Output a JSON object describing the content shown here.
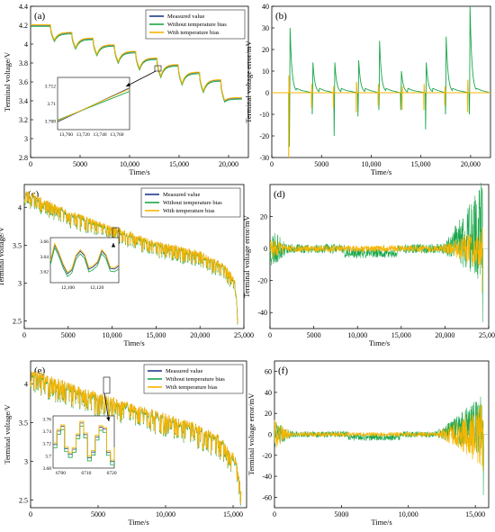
{
  "colors": {
    "measured": "#1f3a8a",
    "without": "#1aa64a",
    "with": "#f7b500"
  },
  "chart_data": [
    {
      "id": "a",
      "type": "line",
      "panel_label": "(a)",
      "xlabel": "Time/s",
      "ylabel": "Terminal voltage/V",
      "xlim": [
        0,
        22000
      ],
      "ylim": [
        2.8,
        4.4
      ],
      "xticks": [
        0,
        5000,
        10000,
        15000,
        20000
      ],
      "xtick_labels": [
        "0",
        "5000",
        "10,000",
        "15,000",
        "20,000"
      ],
      "yticks": [
        2.8,
        3.0,
        3.2,
        3.4,
        3.6,
        3.8,
        4.0,
        4.2,
        4.4
      ],
      "ytick_labels": [
        "2.8",
        "3",
        "3.2",
        "3.4",
        "3.6",
        "3.8",
        "4",
        "4.2",
        "4.4"
      ],
      "legend": [
        "Measured value",
        "Without temperature bias",
        "With temperature bias"
      ],
      "pulse_profile": {
        "start_voltage": 4.2,
        "initial_rest_end": 2000,
        "num_pulses": 9,
        "pulse_period": 2150,
        "pulse_duration": 400,
        "drop_start": [
          4.2,
          4.12,
          4.06,
          3.99,
          3.92,
          3.85,
          3.78,
          3.7,
          3.62
        ],
        "drop_end": [
          4.04,
          3.96,
          3.89,
          3.81,
          3.74,
          3.66,
          3.58,
          3.5,
          3.4
        ]
      },
      "inset": {
        "xlim": [
          13690,
          13775
        ],
        "ylim": [
          3.707,
          3.713
        ],
        "xticks": [
          13700,
          13720,
          13740,
          13760
        ],
        "xtick_labels": [
          "13,700",
          "13,720",
          "13,740",
          "13,760"
        ],
        "yticks": [
          3.708,
          3.71,
          3.712
        ],
        "ytick_labels": [
          "3.708",
          "3.71",
          "3.712"
        ],
        "measured_x": [
          13690,
          13775
        ],
        "measured_y": [
          3.7079,
          3.7118
        ],
        "without_x": [
          13690,
          13775
        ],
        "without_y": [
          3.7081,
          3.7114
        ],
        "with_x": [
          13690,
          13775
        ],
        "with_y": [
          3.708,
          3.7117
        ]
      }
    },
    {
      "id": "b",
      "type": "line",
      "panel_label": "(b)",
      "xlabel": "Time/s",
      "ylabel": "Terminal voltage error/mV",
      "xlim": [
        0,
        22000
      ],
      "ylim": [
        -30,
        40
      ],
      "xticks": [
        0,
        5000,
        10000,
        15000,
        20000
      ],
      "xtick_labels": [
        "0",
        "5000",
        "10,000",
        "15,000",
        "20,000"
      ],
      "yticks": [
        -30,
        -20,
        -10,
        0,
        10,
        20,
        30,
        40
      ],
      "ytick_labels": [
        "-30",
        "-20",
        "-10",
        "0",
        "10",
        "20",
        "30",
        "40"
      ],
      "without_bias_events": [
        {
          "t": 1800,
          "neg": -25,
          "pos": 30
        },
        {
          "t": 4100,
          "neg": -10,
          "pos": 14
        },
        {
          "t": 6300,
          "neg": -20,
          "pos": 14
        },
        {
          "t": 8700,
          "neg": -11,
          "pos": 15
        },
        {
          "t": 10800,
          "neg": -8,
          "pos": 24
        },
        {
          "t": 13000,
          "neg": -8,
          "pos": 10
        },
        {
          "t": 15500,
          "neg": -17,
          "pos": 14
        },
        {
          "t": 17500,
          "neg": -10,
          "pos": 26
        },
        {
          "t": 19900,
          "neg": -10,
          "pos": 40
        }
      ],
      "with_bias_spikes": [
        {
          "t": 1700,
          "neg": -30,
          "pos": 8
        },
        {
          "t": 4000,
          "neg": -7,
          "pos": 4
        },
        {
          "t": 6200,
          "neg": -7,
          "pos": 3
        },
        {
          "t": 8500,
          "neg": -9,
          "pos": 5
        },
        {
          "t": 10700,
          "neg": -6,
          "pos": 4
        },
        {
          "t": 13100,
          "neg": -8,
          "pos": 3
        },
        {
          "t": 15300,
          "neg": -8,
          "pos": 4
        },
        {
          "t": 17400,
          "neg": -6,
          "pos": 3
        },
        {
          "t": 19700,
          "neg": -9,
          "pos": 6
        }
      ]
    },
    {
      "id": "c",
      "type": "line",
      "panel_label": "(c)",
      "xlabel": "Time/s",
      "ylabel": "Terminal voltage/V",
      "xlim": [
        0,
        25000
      ],
      "ylim": [
        2.4,
        4.3
      ],
      "xticks": [
        0,
        5000,
        10000,
        15000,
        20000,
        25000
      ],
      "xtick_labels": [
        "0",
        "5000",
        "10,000",
        "15,000",
        "20,000",
        "25,000"
      ],
      "yticks": [
        2.5,
        3,
        3.5,
        4
      ],
      "ytick_labels": [
        "2.5",
        "3",
        "3.5",
        "4"
      ],
      "legend": [
        "Measured value",
        "Without temperature bias",
        "With temperature bias"
      ],
      "trend": {
        "t": [
          0,
          5000,
          10000,
          15000,
          20000,
          23000,
          24000,
          24300
        ],
        "v": [
          4.2,
          3.92,
          3.72,
          3.52,
          3.38,
          3.2,
          3.0,
          2.55
        ]
      },
      "band_amplitude": 0.17,
      "inset": {
        "xlim": [
          12088,
          12135
        ],
        "ylim": [
          3.605,
          3.665
        ],
        "xticks": [
          12100,
          12120
        ],
        "xtick_labels": [
          "12,100",
          "12,120"
        ],
        "yticks": [
          3.62,
          3.64,
          3.66
        ],
        "ytick_labels": [
          "3.62",
          "3.64",
          "3.66"
        ]
      }
    },
    {
      "id": "d",
      "type": "line",
      "panel_label": "(d)",
      "xlabel": "Time/s",
      "ylabel": "Terminal voltage error/mV",
      "xlim": [
        0,
        25000
      ],
      "ylim": [
        -50,
        40
      ],
      "xticks": [
        0,
        5000,
        10000,
        15000,
        20000,
        25000
      ],
      "xtick_labels": [
        "0",
        "5000",
        "10,000",
        "15,000",
        "20,000",
        "25,000"
      ],
      "yticks": [
        -40,
        -20,
        0,
        20
      ],
      "ytick_labels": [
        "-40",
        "-20",
        "0",
        "20"
      ]
    },
    {
      "id": "e",
      "type": "line",
      "panel_label": "(e)",
      "xlabel": "Time/s",
      "ylabel": "Terminal voltage/V",
      "xlim": [
        0,
        16000
      ],
      "ylim": [
        2.4,
        4.3
      ],
      "xticks": [
        0,
        5000,
        10000,
        15000
      ],
      "xtick_labels": [
        "0",
        "5000",
        "10,000",
        "15,000"
      ],
      "yticks": [
        2.5,
        3,
        3.5,
        4
      ],
      "ytick_labels": [
        "2.5",
        "3",
        "3.5",
        "4"
      ],
      "legend": [
        "Measured value",
        "Without temperature bias",
        "With temperature bias"
      ],
      "trend": {
        "t": [
          0,
          3000,
          6000,
          9000,
          12000,
          14000,
          15200,
          15600
        ],
        "v": [
          4.15,
          3.95,
          3.78,
          3.62,
          3.45,
          3.28,
          3.0,
          2.6
        ]
      },
      "band_amplitude": 0.25,
      "inset": {
        "xlim": [
          6697,
          6721
        ],
        "ylim": [
          3.68,
          3.765
        ],
        "xticks": [
          6700,
          6710,
          6720
        ],
        "xtick_labels": [
          "6700",
          "6710",
          "6720"
        ],
        "yticks": [
          3.68,
          3.7,
          3.72,
          3.74,
          3.76
        ],
        "ytick_labels": [
          "3.68",
          "3.7",
          "3.72",
          "3.74",
          "3.76"
        ]
      }
    },
    {
      "id": "f",
      "type": "line",
      "panel_label": "(f)",
      "xlabel": "Time/s",
      "ylabel": "Terminal voltage error/mV",
      "xlim": [
        0,
        16000
      ],
      "ylim": [
        -70,
        70
      ],
      "xticks": [
        0,
        5000,
        10000,
        15000
      ],
      "xtick_labels": [
        "0",
        "5000",
        "10,000",
        "15,000"
      ],
      "yticks": [
        -60,
        -40,
        -20,
        0,
        20,
        40,
        60
      ],
      "ytick_labels": [
        "-60",
        "-40",
        "-20",
        "0",
        "20",
        "40",
        "60"
      ]
    }
  ]
}
